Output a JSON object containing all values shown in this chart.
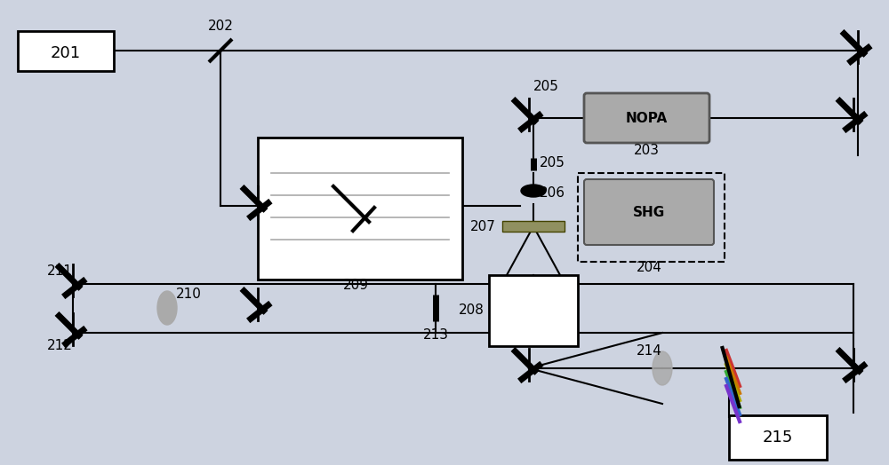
{
  "bg_color": "#cdd3e0",
  "line_color": "#000000",
  "lw": 1.5,
  "fig_w": 10.0,
  "fig_h": 5.24,
  "dpi": 100
}
